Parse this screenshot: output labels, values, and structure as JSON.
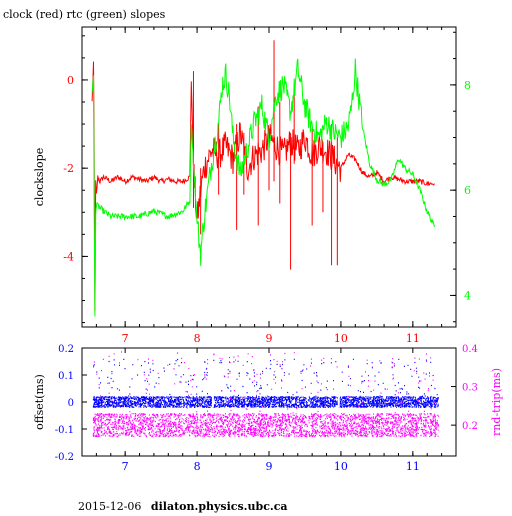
{
  "title": "clock (red) rtc (green) slopes",
  "footer": {
    "date": "2015-12-06",
    "host": "dilaton.physics.ubc.ca"
  },
  "colors": {
    "clock": "#ff0000",
    "rtc": "#00ff00",
    "offset": "#0000ff",
    "rndtrip": "#ff00ff",
    "axis": "#000000"
  },
  "chart_data": [
    {
      "type": "line",
      "title": "clock (red) rtc (green) slopes",
      "ylabel": "clockslope",
      "y2label": "",
      "xlim": [
        6.4,
        11.6
      ],
      "ylim": [
        -5.6,
        1.2
      ],
      "y2lim": [
        3.4,
        9.1
      ],
      "x_ticks": [
        7,
        8,
        9,
        10,
        11
      ],
      "y_ticks": [
        0,
        -2,
        -4
      ],
      "y2_ticks": [
        8,
        6,
        4
      ],
      "series": [
        {
          "name": "clock",
          "axis": "left",
          "color": "#ff0000",
          "x": [
            6.54,
            6.56,
            6.57,
            6.58,
            6.59,
            6.6,
            6.62,
            6.65,
            6.7,
            6.8,
            6.9,
            7.0,
            7.1,
            7.2,
            7.3,
            7.4,
            7.5,
            7.6,
            7.7,
            7.8,
            7.9,
            7.92,
            7.95,
            7.98,
            8.0,
            8.05,
            8.1,
            8.15,
            8.2,
            8.3,
            8.4,
            8.5,
            8.6,
            8.7,
            8.8,
            8.9,
            9.0,
            9.1,
            9.2,
            9.3,
            9.4,
            9.5,
            9.6,
            9.7,
            9.8,
            9.9,
            10.0,
            10.1,
            10.2,
            10.3,
            10.4,
            10.5,
            10.6,
            10.7,
            10.8,
            10.9,
            11.0,
            11.1,
            11.2,
            11.3
          ],
          "y": [
            -0.5,
            0.4,
            -2.0,
            -5.2,
            -2.3,
            -2.6,
            -2.2,
            -2.3,
            -2.2,
            -2.3,
            -2.2,
            -2.3,
            -2.2,
            -2.25,
            -2.3,
            -2.2,
            -2.3,
            -2.25,
            -2.3,
            -2.3,
            -2.2,
            0.0,
            -2.0,
            -2.7,
            -3.2,
            -2.5,
            -2.0,
            -1.8,
            -1.6,
            -1.7,
            -1.5,
            -1.8,
            -1.2,
            -2.0,
            -1.7,
            -1.6,
            -1.3,
            -1.5,
            -1.7,
            -1.4,
            -1.6,
            -1.3,
            -1.7,
            -1.5,
            -1.6,
            -1.8,
            -2.0,
            -1.7,
            -1.8,
            -2.1,
            -2.2,
            -2.1,
            -2.3,
            -2.2,
            -2.25,
            -2.3,
            -2.3,
            -2.3,
            -2.35,
            -2.35
          ]
        },
        {
          "name": "rtc",
          "axis": "right",
          "color": "#00ff00",
          "x": [
            6.54,
            6.56,
            6.57,
            6.58,
            6.59,
            6.6,
            6.62,
            6.7,
            6.8,
            7.0,
            7.2,
            7.4,
            7.6,
            7.8,
            7.9,
            7.92,
            7.95,
            8.0,
            8.05,
            8.1,
            8.2,
            8.3,
            8.35,
            8.4,
            8.45,
            8.5,
            8.6,
            8.7,
            8.8,
            8.9,
            9.0,
            9.1,
            9.2,
            9.3,
            9.4,
            9.5,
            9.6,
            9.7,
            9.8,
            9.9,
            10.0,
            10.1,
            10.15,
            10.2,
            10.3,
            10.4,
            10.5,
            10.6,
            10.7,
            10.8,
            10.9,
            11.0,
            11.1,
            11.2,
            11.3
          ],
          "y": [
            7.8,
            8.2,
            5.5,
            3.6,
            5.6,
            5.7,
            5.7,
            5.6,
            5.5,
            5.5,
            5.5,
            5.6,
            5.5,
            5.6,
            5.8,
            7.3,
            6.5,
            5.4,
            4.8,
            5.5,
            6.5,
            7.3,
            8.0,
            8.2,
            7.8,
            7.0,
            6.3,
            6.8,
            7.3,
            7.6,
            7.0,
            7.8,
            8.0,
            7.5,
            8.3,
            7.6,
            7.2,
            7.0,
            7.3,
            7.1,
            7.0,
            7.2,
            7.6,
            8.3,
            7.2,
            6.5,
            6.2,
            6.1,
            6.2,
            6.6,
            6.4,
            6.3,
            6.0,
            5.6,
            5.3
          ]
        }
      ]
    },
    {
      "type": "scatter",
      "ylabel": "offset(ms)",
      "y2label": "rnd-trip(ms)",
      "xlim": [
        6.4,
        11.6
      ],
      "ylim": [
        -0.2,
        0.2
      ],
      "y2lim": [
        0.12,
        0.4
      ],
      "x_ticks": [
        7,
        8,
        9,
        10,
        11
      ],
      "y_ticks": [
        0.2,
        0.1,
        0,
        -0.1,
        -0.2
      ],
      "y_tick_labels": [
        "0.2",
        "0.1",
        "0",
        "-0.1",
        "-0.2"
      ],
      "y2_ticks": [
        0.4,
        0.3,
        0.2
      ],
      "y2_tick_labels": [
        "0.4",
        "0.3",
        "0.2"
      ],
      "series": [
        {
          "name": "offset",
          "axis": "left",
          "color": "#0000ff",
          "x_range": [
            6.55,
            11.35
          ],
          "center": 0.0,
          "spread": 0.02,
          "outlier_max": 0.16
        },
        {
          "name": "rnd-trip",
          "axis": "right",
          "color": "#ff00ff",
          "x_range": [
            6.55,
            11.35
          ],
          "center": 0.2,
          "spread": 0.03,
          "outlier_max": 0.39
        }
      ]
    }
  ]
}
